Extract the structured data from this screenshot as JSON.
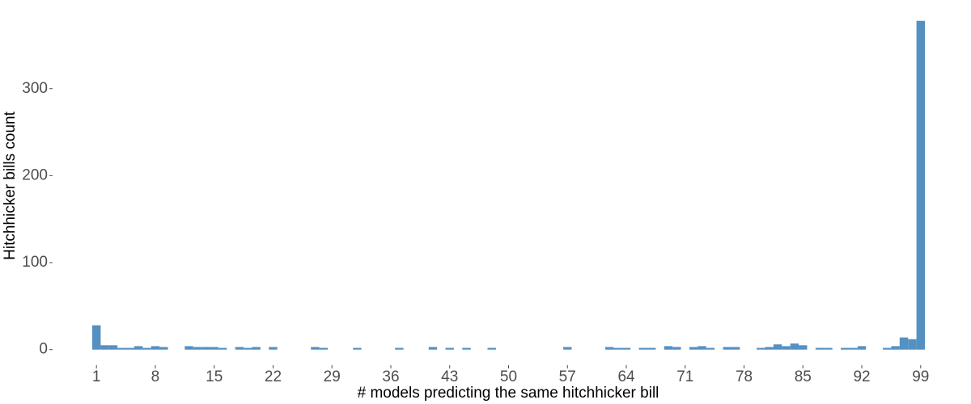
{
  "chart_data": {
    "type": "histogram",
    "xlabel": "# models predicting the same hitchhicker bill",
    "ylabel": "Hitchhicker bills count",
    "x": [
      1,
      2,
      3,
      4,
      5,
      6,
      7,
      8,
      9,
      10,
      11,
      12,
      13,
      14,
      15,
      16,
      17,
      18,
      19,
      20,
      21,
      22,
      23,
      24,
      25,
      26,
      27,
      28,
      29,
      30,
      31,
      32,
      33,
      34,
      35,
      36,
      37,
      38,
      39,
      40,
      41,
      42,
      43,
      44,
      45,
      46,
      47,
      48,
      49,
      50,
      51,
      52,
      53,
      54,
      55,
      56,
      57,
      58,
      59,
      60,
      61,
      62,
      63,
      64,
      65,
      66,
      67,
      68,
      69,
      70,
      71,
      72,
      73,
      74,
      75,
      76,
      77,
      78,
      79,
      80,
      81,
      82,
      83,
      84,
      85,
      86,
      87,
      88,
      89,
      90,
      91,
      92,
      93,
      94,
      95,
      96,
      97,
      98,
      99
    ],
    "values": [
      28,
      5,
      5,
      2,
      2,
      4,
      2,
      4,
      3,
      0,
      0,
      4,
      3,
      3,
      3,
      2,
      0,
      3,
      2,
      3,
      0,
      3,
      0,
      0,
      0,
      0,
      3,
      2,
      0,
      0,
      0,
      2,
      0,
      0,
      0,
      0,
      2,
      0,
      0,
      0,
      3,
      0,
      2,
      0,
      2,
      0,
      0,
      2,
      0,
      0,
      0,
      0,
      0,
      0,
      0,
      0,
      3,
      0,
      0,
      0,
      0,
      3,
      2,
      2,
      0,
      2,
      2,
      0,
      4,
      3,
      0,
      3,
      4,
      2,
      0,
      3,
      3,
      0,
      0,
      2,
      3,
      6,
      4,
      7,
      5,
      0,
      2,
      2,
      0,
      2,
      2,
      4,
      0,
      0,
      2,
      4,
      14,
      12,
      378
    ],
    "color": "#5590c3",
    "xlim": [
      0.5,
      99.5
    ],
    "xticks": [
      1,
      8,
      15,
      22,
      29,
      36,
      43,
      50,
      57,
      64,
      71,
      78,
      85,
      92,
      99
    ],
    "ylim": [
      -17,
      388
    ],
    "yticks": [
      0,
      100,
      200,
      300
    ],
    "grid": false
  }
}
